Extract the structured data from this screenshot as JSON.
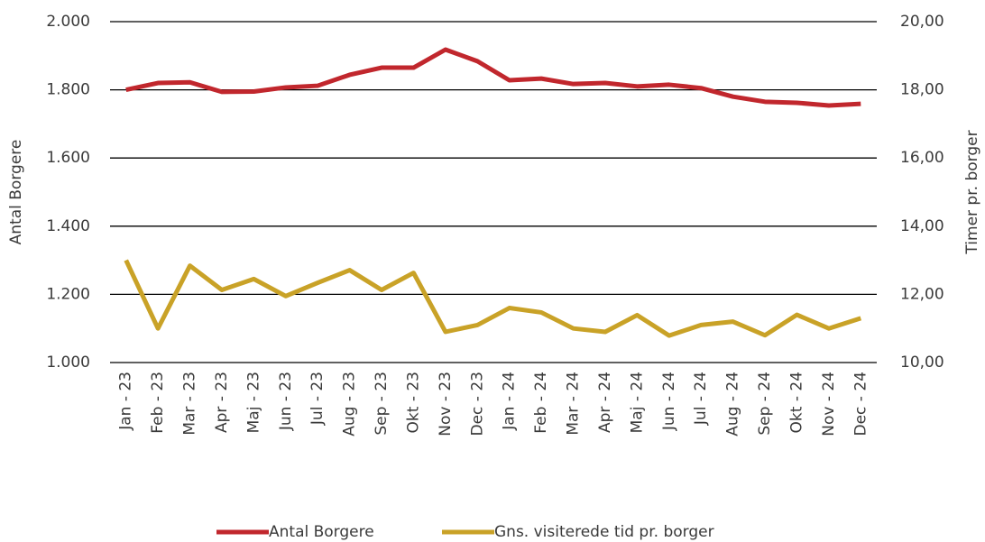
{
  "chart_data": {
    "type": "line",
    "y_label": "Antal Borgere",
    "y2_label": "Timer pr. borger",
    "categories": [
      "Jan - 23",
      "Feb - 23",
      "Mar - 23",
      "Apr - 23",
      "Maj - 23",
      "Jun - 23",
      "Jul - 23",
      "Aug - 23",
      "Sep - 23",
      "Okt - 23",
      "Nov - 23",
      "Dec - 23",
      "Jan - 24",
      "Feb - 24",
      "Mar - 24",
      "Apr - 24",
      "Maj - 24",
      "Jun - 24",
      "Jul - 24",
      "Aug - 24",
      "Sep - 24",
      "Okt - 24",
      "Nov - 24",
      "Dec - 24"
    ],
    "series": [
      {
        "name": "Antal Borgere",
        "color": "#c1272d",
        "axis": "y",
        "values": [
          1800,
          1820,
          1822,
          1794,
          1795,
          1807,
          1812,
          1844,
          1865,
          1865,
          1918,
          1884,
          1828,
          1833,
          1817,
          1820,
          1810,
          1815,
          1805,
          1780,
          1765,
          1762,
          1754,
          1759
        ]
      },
      {
        "name": "Gns. visiterede tid pr. borger",
        "color": "#c9a227",
        "axis": "y2",
        "values": [
          13.0,
          11.0,
          12.84,
          12.13,
          12.45,
          11.95,
          12.34,
          12.71,
          12.13,
          12.63,
          10.9,
          11.1,
          11.6,
          11.47,
          11.0,
          10.9,
          11.39,
          10.79,
          11.1,
          11.2,
          10.8,
          11.4,
          11.0,
          11.3
        ]
      }
    ],
    "ylim": [
      1000,
      2000
    ],
    "yticks": [
      {
        "value": 1000,
        "label": "1.000"
      },
      {
        "value": 1200,
        "label": "1.200"
      },
      {
        "value": 1400,
        "label": "1.400"
      },
      {
        "value": 1600,
        "label": "1.600"
      },
      {
        "value": 1800,
        "label": "1.800"
      },
      {
        "value": 2000,
        "label": "2.000"
      }
    ],
    "y2lim": [
      10,
      20
    ],
    "y2ticks": [
      {
        "value": 10,
        "label": "10,00"
      },
      {
        "value": 12,
        "label": "12,00"
      },
      {
        "value": 14,
        "label": "14,00"
      },
      {
        "value": 16,
        "label": "16,00"
      },
      {
        "value": 18,
        "label": "18,00"
      },
      {
        "value": 20,
        "label": "20,00"
      }
    ],
    "grid": true,
    "legend": "bottom"
  }
}
